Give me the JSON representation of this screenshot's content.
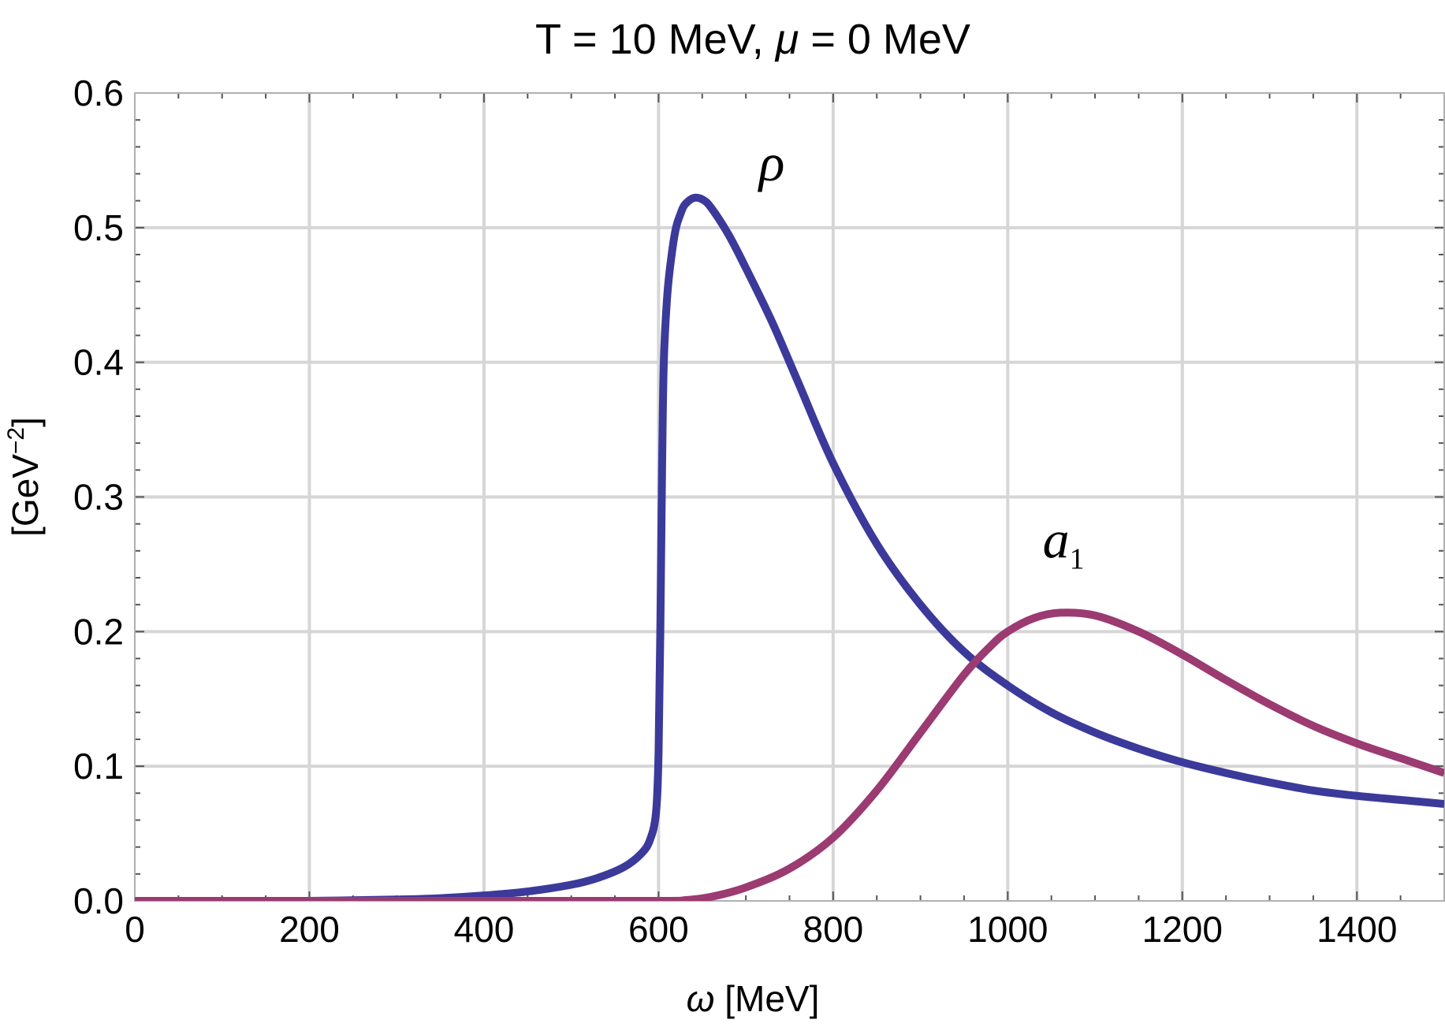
{
  "chart_data": {
    "type": "line",
    "title": {
      "prefix": "T = 10 MeV, ",
      "symbol": "μ",
      "suffix": " = 0 MeV"
    },
    "xlabel": {
      "symbol": "ω",
      "text": " [MeV]"
    },
    "ylabel": {
      "base": "[GeV",
      "sup": "−2",
      "end": "]"
    },
    "xlim": [
      0,
      1500
    ],
    "ylim": [
      0,
      0.6
    ],
    "x_ticks": [
      0,
      200,
      400,
      600,
      800,
      1000,
      1200,
      1400
    ],
    "x_tick_labels": [
      "0",
      "200",
      "400",
      "600",
      "800",
      "1000",
      "1200",
      "1400"
    ],
    "y_ticks": [
      0,
      0.1,
      0.2,
      0.3,
      0.4,
      0.5,
      0.6
    ],
    "y_tick_labels": [
      "0.0",
      "0.1",
      "0.2",
      "0.3",
      "0.4",
      "0.5",
      "0.6"
    ],
    "grid": true,
    "series": [
      {
        "name": "ρ",
        "color": "#3b3a9a",
        "x": [
          0,
          100,
          200,
          300,
          350,
          400,
          450,
          500,
          530,
          560,
          580,
          590,
          597,
          600,
          602,
          604,
          606,
          610,
          615,
          620,
          625,
          630,
          640,
          650,
          660,
          680,
          700,
          730,
          760,
          800,
          850,
          900,
          950,
          1000,
          1050,
          1100,
          1150,
          1200,
          1250,
          1300,
          1350,
          1400,
          1450,
          1500
        ],
        "y": [
          0.0,
          0.0,
          0.0,
          0.001,
          0.002,
          0.004,
          0.007,
          0.012,
          0.017,
          0.025,
          0.035,
          0.045,
          0.065,
          0.11,
          0.2,
          0.32,
          0.4,
          0.45,
          0.48,
          0.5,
          0.51,
          0.517,
          0.522,
          0.521,
          0.515,
          0.495,
          0.47,
          0.43,
          0.385,
          0.325,
          0.265,
          0.22,
          0.185,
          0.16,
          0.14,
          0.125,
          0.113,
          0.103,
          0.095,
          0.088,
          0.082,
          0.078,
          0.075,
          0.072
        ]
      },
      {
        "name": "a",
        "subscript": "1",
        "color": "#9c3a72",
        "x": [
          0,
          200,
          400,
          600,
          630,
          660,
          700,
          750,
          800,
          850,
          900,
          950,
          980,
          1000,
          1030,
          1060,
          1100,
          1150,
          1200,
          1250,
          1300,
          1350,
          1400,
          1450,
          1500
        ],
        "y": [
          0.0,
          0.0,
          0.0,
          0.0,
          0.0005,
          0.003,
          0.01,
          0.024,
          0.047,
          0.082,
          0.125,
          0.168,
          0.189,
          0.2,
          0.21,
          0.214,
          0.212,
          0.2,
          0.183,
          0.164,
          0.146,
          0.13,
          0.117,
          0.106,
          0.095
        ]
      }
    ],
    "annotations": [
      {
        "text": "ρ",
        "x": 715,
        "y": 0.535
      },
      {
        "text": "a",
        "subscript": "1",
        "x": 1040,
        "y": 0.255
      }
    ]
  }
}
